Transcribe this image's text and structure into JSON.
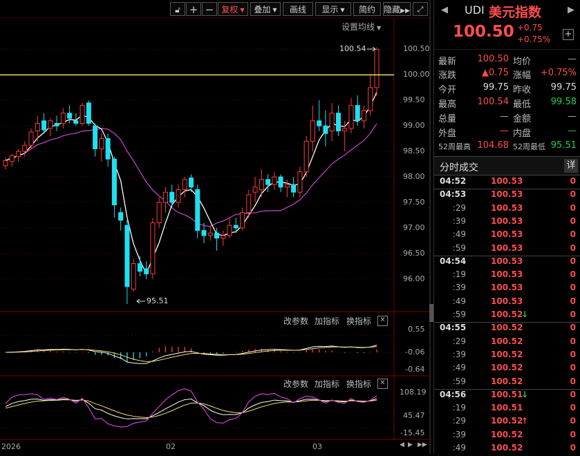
{
  "toolbar": {
    "fuquan": "复权",
    "diejia": "叠加",
    "huaxian": "画线",
    "xianshi": "显示",
    "jianyue": "简约",
    "yincang": "隐藏"
  },
  "chart": {
    "ma_setting": "设置均线",
    "high_marker": "100.54",
    "low_marker": "95.51",
    "price_axis": [
      "100.50",
      "100.00",
      "99.50",
      "99.00",
      "98.50",
      "98.00",
      "97.50",
      "97.00",
      "96.50",
      "96.00"
    ],
    "x_labels": [
      "2026",
      "02",
      "03"
    ],
    "macd_axis": [
      "0.55",
      "-0.06",
      "-0.64"
    ],
    "kdj_axis": [
      "108.19",
      "45.47",
      "-15.45"
    ],
    "sub_buttons": {
      "gai": "改参数",
      "jia": "加指标",
      "huan": "换指标"
    }
  },
  "chart_data": {
    "type": "candlestick",
    "ylim": [
      95.4,
      100.75
    ],
    "reference_line": 100.0,
    "candles": [
      [
        98.22,
        98.38,
        98.15,
        98.32
      ],
      [
        98.3,
        98.45,
        98.2,
        98.42
      ],
      [
        98.4,
        98.55,
        98.3,
        98.5
      ],
      [
        98.5,
        98.7,
        98.4,
        98.62
      ],
      [
        98.62,
        98.95,
        98.55,
        98.88
      ],
      [
        98.9,
        99.2,
        98.7,
        99.05
      ],
      [
        99.1,
        99.25,
        98.85,
        98.92
      ],
      [
        98.95,
        99.15,
        98.8,
        99.1
      ],
      [
        99.05,
        99.2,
        98.9,
        99.0
      ],
      [
        99.05,
        99.35,
        98.95,
        99.25
      ],
      [
        99.25,
        99.4,
        99.05,
        99.15
      ],
      [
        99.1,
        99.25,
        99.0,
        99.05
      ],
      [
        99.05,
        99.45,
        99.0,
        99.4
      ],
      [
        99.45,
        99.5,
        99.0,
        99.05
      ],
      [
        99.0,
        99.05,
        98.4,
        98.55
      ],
      [
        98.55,
        98.85,
        98.3,
        98.75
      ],
      [
        98.75,
        98.85,
        98.2,
        98.35
      ],
      [
        98.35,
        98.4,
        97.2,
        97.45
      ],
      [
        97.3,
        97.4,
        96.95,
        97.15
      ],
      [
        97.05,
        97.15,
        95.51,
        95.85
      ],
      [
        95.8,
        96.4,
        95.75,
        96.3
      ],
      [
        96.3,
        96.45,
        96.05,
        96.15
      ],
      [
        96.2,
        96.35,
        96.0,
        96.1
      ],
      [
        96.1,
        97.2,
        96.0,
        97.1
      ],
      [
        97.1,
        97.6,
        97.0,
        97.5
      ],
      [
        97.5,
        97.8,
        97.3,
        97.7
      ],
      [
        97.7,
        97.85,
        97.4,
        97.5
      ],
      [
        97.5,
        97.85,
        97.4,
        97.75
      ],
      [
        97.75,
        98.0,
        97.6,
        97.95
      ],
      [
        97.98,
        98.05,
        97.7,
        97.8
      ],
      [
        97.75,
        97.85,
        96.8,
        96.95
      ],
      [
        96.95,
        97.1,
        96.7,
        96.85
      ],
      [
        96.85,
        97.05,
        96.75,
        96.9
      ],
      [
        96.9,
        97.0,
        96.55,
        96.8
      ],
      [
        96.8,
        96.95,
        96.65,
        96.85
      ],
      [
        96.85,
        97.2,
        96.8,
        97.05
      ],
      [
        97.05,
        97.2,
        96.9,
        97.0
      ],
      [
        97.0,
        97.4,
        96.95,
        97.3
      ],
      [
        97.3,
        97.75,
        97.2,
        97.65
      ],
      [
        97.7,
        98.0,
        97.5,
        97.8
      ],
      [
        97.75,
        98.15,
        97.6,
        97.95
      ],
      [
        97.95,
        98.05,
        97.7,
        97.85
      ],
      [
        97.85,
        98.1,
        97.75,
        98.0
      ],
      [
        98.0,
        98.05,
        97.7,
        97.8
      ],
      [
        97.8,
        97.95,
        97.6,
        97.85
      ],
      [
        97.85,
        98.0,
        97.6,
        97.7
      ],
      [
        97.7,
        98.2,
        97.6,
        98.1
      ],
      [
        98.1,
        98.8,
        98.0,
        98.7
      ],
      [
        98.7,
        99.4,
        98.5,
        99.1
      ],
      [
        99.1,
        99.5,
        98.9,
        99.0
      ],
      [
        99.0,
        99.3,
        98.6,
        98.85
      ],
      [
        98.9,
        99.45,
        98.7,
        99.25
      ],
      [
        99.25,
        99.4,
        98.8,
        98.9
      ],
      [
        98.9,
        99.1,
        98.5,
        98.95
      ],
      [
        98.95,
        99.55,
        98.85,
        99.4
      ],
      [
        99.4,
        99.6,
        99.0,
        99.1
      ],
      [
        99.1,
        99.4,
        98.95,
        99.3
      ],
      [
        99.3,
        100.0,
        99.2,
        99.75
      ],
      [
        99.75,
        100.54,
        99.58,
        100.5
      ]
    ]
  },
  "quote": {
    "code": "UDI",
    "name": "美元指数",
    "price": "100.50",
    "change": "+0.75",
    "change_pct": "+0.75%",
    "stats": {
      "zuixin_label": "最新",
      "zuixin": "100.50",
      "junjia_label": "均价",
      "junjia": "—",
      "zhangdie_label": "涨跌",
      "zhangdie": "▲0.75",
      "zhangfu_label": "涨幅",
      "zhangfu": "+0.75%",
      "jinkai_label": "今开",
      "jinkai": "99.75",
      "zuoshou_label": "昨收",
      "zuoshou": "99.75",
      "zuigao_label": "最高",
      "zuigao": "100.54",
      "zuidi_label": "最低",
      "zuidi": "99.58",
      "zongliang_label": "总量",
      "zongliang": "—",
      "jine_label": "金额",
      "jine": "—",
      "waipan_label": "外盘",
      "waipan": "—",
      "neipan_label": "内盘",
      "neipan": "—",
      "w52high_label": "52周最高",
      "w52high": "104.68",
      "w52low_label": "52周最低",
      "w52low": "95.51"
    }
  },
  "trades": {
    "title": "分时成交",
    "detail": "详",
    "rows": [
      {
        "t": "04:52",
        "p": "100.53",
        "q": "0",
        "big": true,
        "arrow": ""
      },
      {
        "t": "04:53",
        "p": "100.53",
        "q": "0",
        "big": true,
        "arrow": ""
      },
      {
        "t": ":29",
        "p": "100.53",
        "q": "0",
        "big": false,
        "arrow": ""
      },
      {
        "t": ":39",
        "p": "100.53",
        "q": "0",
        "big": false,
        "arrow": ""
      },
      {
        "t": ":49",
        "p": "100.53",
        "q": "0",
        "big": false,
        "arrow": ""
      },
      {
        "t": ":59",
        "p": "100.53",
        "q": "0",
        "big": false,
        "arrow": ""
      },
      {
        "t": "04:54",
        "p": "100.53",
        "q": "0",
        "big": true,
        "arrow": ""
      },
      {
        "t": ":19",
        "p": "100.53",
        "q": "0",
        "big": false,
        "arrow": ""
      },
      {
        "t": ":39",
        "p": "100.53",
        "q": "0",
        "big": false,
        "arrow": ""
      },
      {
        "t": ":49",
        "p": "100.53",
        "q": "0",
        "big": false,
        "arrow": ""
      },
      {
        "t": ":59",
        "p": "100.52",
        "q": "0",
        "big": false,
        "arrow": "down"
      },
      {
        "t": "04:55",
        "p": "100.52",
        "q": "0",
        "big": true,
        "arrow": ""
      },
      {
        "t": ":29",
        "p": "100.52",
        "q": "0",
        "big": false,
        "arrow": ""
      },
      {
        "t": ":39",
        "p": "100.52",
        "q": "0",
        "big": false,
        "arrow": ""
      },
      {
        "t": ":49",
        "p": "100.52",
        "q": "0",
        "big": false,
        "arrow": ""
      },
      {
        "t": ":59",
        "p": "100.52",
        "q": "0",
        "big": false,
        "arrow": ""
      },
      {
        "t": "04:56",
        "p": "100.51",
        "q": "0",
        "big": true,
        "arrow": "down"
      },
      {
        "t": ":19",
        "p": "100.51",
        "q": "0",
        "big": false,
        "arrow": ""
      },
      {
        "t": ":29",
        "p": "100.52",
        "q": "0",
        "big": false,
        "arrow": "up"
      },
      {
        "t": ":39",
        "p": "100.52",
        "q": "0",
        "big": false,
        "arrow": ""
      },
      {
        "t": ":49",
        "p": "100.52",
        "q": "0",
        "big": false,
        "arrow": ""
      }
    ]
  }
}
